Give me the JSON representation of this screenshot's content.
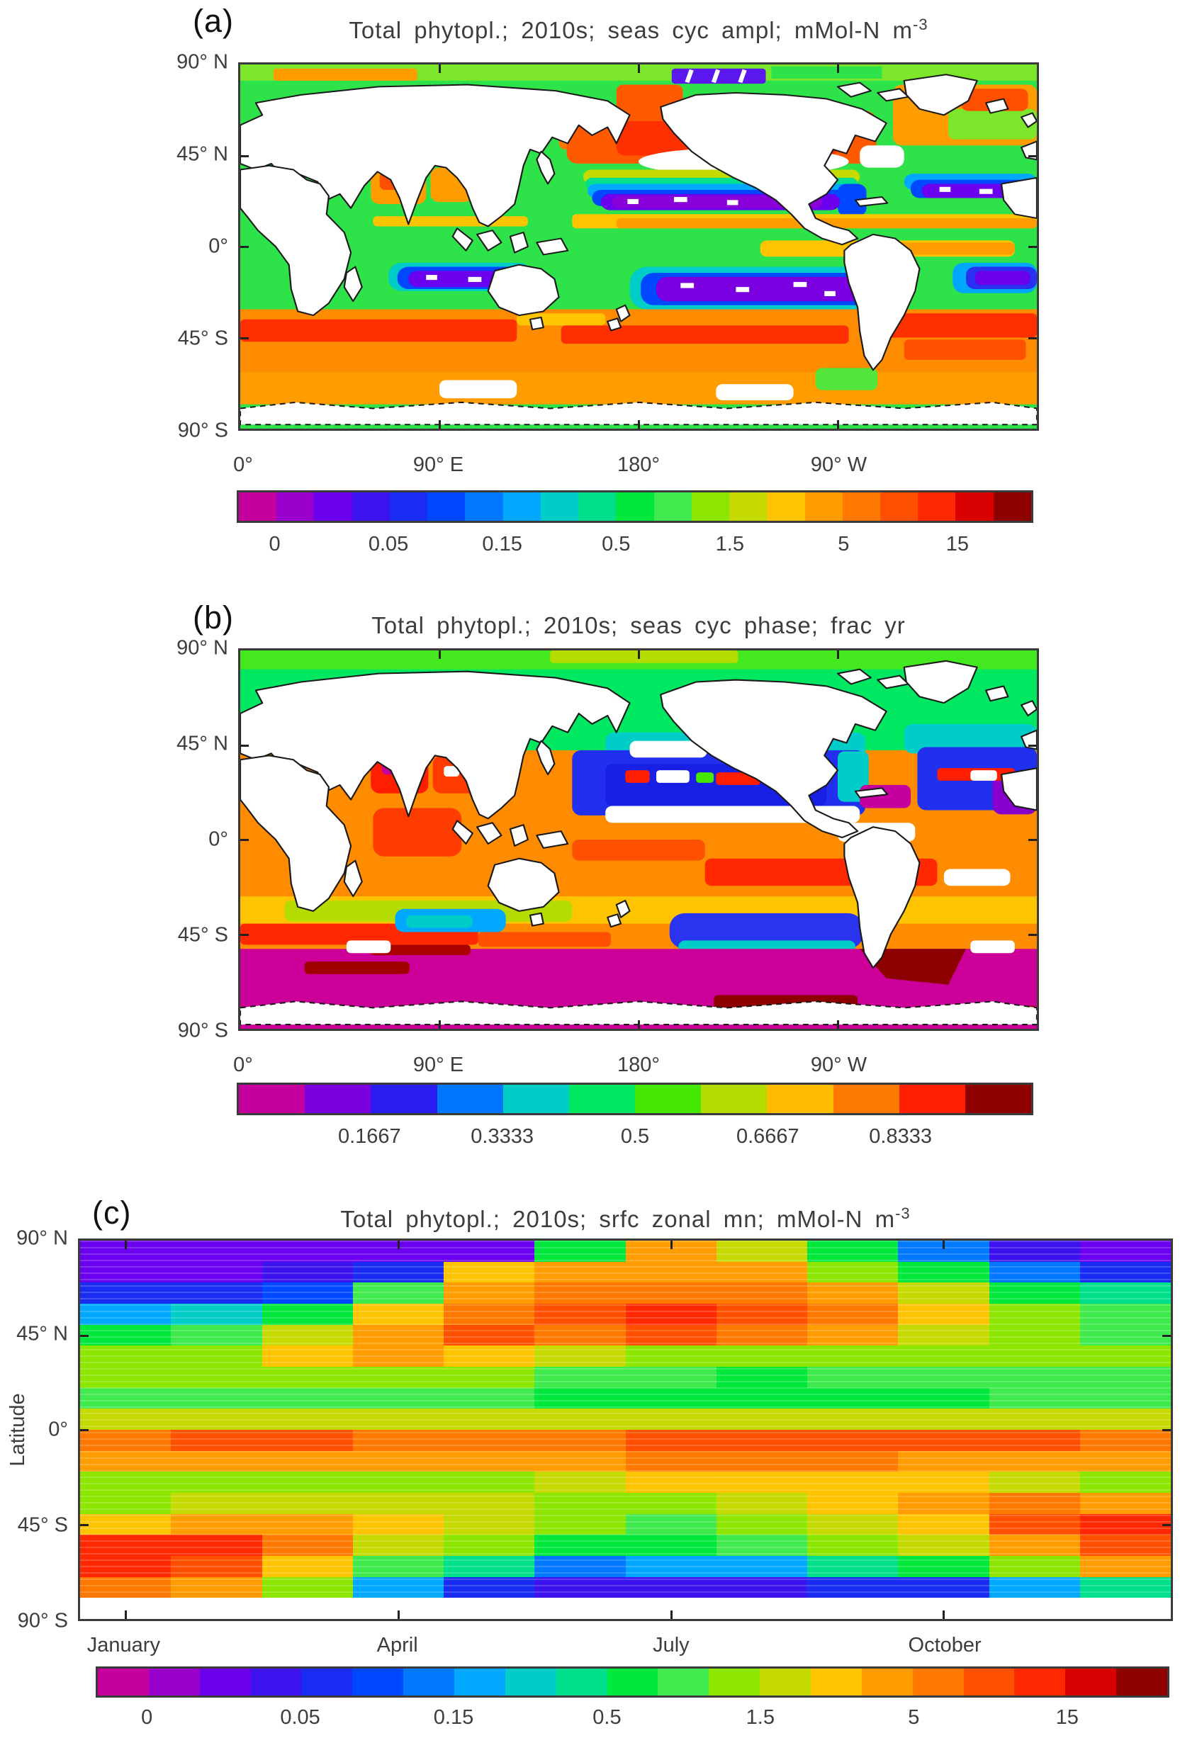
{
  "figure": {
    "panel_tags": [
      "(a)",
      "(b)",
      "(c)"
    ],
    "titles": {
      "a": {
        "text": "Total  phytopl.; 2010s; seas cyc ampl; mMol-N m",
        "sup": "-3"
      },
      "b": {
        "text": "Total  phytopl.; 2010s; seas cyc phase; frac yr",
        "sup": ""
      },
      "c": {
        "text": "Total  phytopl.; 2010s; srfc zonal mn; mMol-N m",
        "sup": "-3"
      }
    },
    "axes": {
      "lat_tick_labels": [
        "90° N",
        "45° N",
        "0°",
        "45° S",
        "90° S"
      ],
      "lon_tick_labels": [
        "0°",
        "90° E",
        "180°",
        "90° W"
      ],
      "c_ylabel": "Latitude",
      "c_month_labels": [
        "January",
        "April",
        "July",
        "October"
      ]
    },
    "colorbars": {
      "amplitude": {
        "palette": [
          "#c6009e",
          "#9a00cc",
          "#6a00ee",
          "#3c12ee",
          "#1b2cf2",
          "#0048ff",
          "#0078ff",
          "#00a8ff",
          "#00ccc8",
          "#00e08c",
          "#00e83c",
          "#40ea4e",
          "#8ce600",
          "#c4da00",
          "#ffc400",
          "#ff9c00",
          "#ff7800",
          "#ff5000",
          "#ff2800",
          "#d80000",
          "#8e0000"
        ],
        "tick_labels": [
          "0",
          "0.05",
          "0.15",
          "0.5",
          "1.5",
          "5",
          "15"
        ],
        "boundary_indices": [
          1,
          4,
          7,
          10,
          13,
          16,
          19
        ]
      },
      "phase": {
        "palette": [
          "#c6009e",
          "#7a00dd",
          "#2a1cee",
          "#0076ff",
          "#00ccc8",
          "#00e862",
          "#44e800",
          "#b4dc00",
          "#ffbc00",
          "#ff7a00",
          "#ff1e00",
          "#8e0000"
        ],
        "tick_labels": [
          "0.1667",
          "0.3333",
          "0.5",
          "0.6667",
          "0.8333"
        ],
        "boundary_indices": [
          2,
          4,
          6,
          8,
          10
        ]
      }
    }
  },
  "chart_data": [
    {
      "panel": "a",
      "type": "heatmap",
      "kind": "global map",
      "title": "Total phytopl.; 2010s; seas cyc ampl; mMol-N m^-3",
      "lon_ticks": [
        "0",
        "90E",
        "180",
        "90W"
      ],
      "lat_ticks": [
        "90N",
        "45N",
        "0",
        "45S",
        "90S"
      ],
      "colorbar": "amplitude",
      "colorbar_scale": "quasi-logarithmic, labels at every 3rd of 21 segment boundaries",
      "regions": [
        {
          "where": "subtropical gyres N+S Pacific, N Atlantic, S Indian (15-35 lat)",
          "value": "<0.05 (purple/blue minima, white speckles)"
        },
        {
          "where": "mid/high-latitude N Pacific and N Atlantic (45-65N)",
          "value": "5-15+ (orange/red maxima)"
        },
        {
          "where": "Southern Ocean 40-65S",
          "value": "5-15 (broad orange/red band with red streaks)"
        },
        {
          "where": "equatorial band",
          "value": "0.5-1.5 (green with yellow/orange stripes)"
        },
        {
          "where": "Arctic",
          "value": "1.5-5 (green with orange patches)"
        }
      ]
    },
    {
      "panel": "b",
      "type": "heatmap",
      "kind": "global map",
      "title": "Total phytopl.; 2010s; seas cyc phase; frac yr",
      "lon_ticks": [
        "0",
        "90E",
        "180",
        "90W"
      ],
      "lat_ticks": [
        "90N",
        "45N",
        "0",
        "45S",
        "90S"
      ],
      "colorbar": "phase",
      "colorbar_scale": "linear 0-1 fraction of year, 12 monthly segments",
      "regions": [
        {
          "where": "south of ~45S",
          "value": "~0-0.1 (magenta) with wrap-around ~1 (dark red) patches"
        },
        {
          "where": "NH subtropical gyres 15-40N",
          "value": "~0.33-0.5 (blue)"
        },
        {
          "where": "Arctic and NH high latitudes",
          "value": "~0.4-0.6 (green)"
        },
        {
          "where": "SH tropics/subtropics 0-40S",
          "value": "~0.67-0.92 (orange/red)"
        },
        {
          "where": "transition band 40-50S",
          "value": "~0.58-0.78 (yellow/orange)"
        },
        {
          "where": "~20N central Pacific and Atlantic",
          "value": "mottled red/green/white (mixed phase)"
        }
      ]
    },
    {
      "panel": "c",
      "type": "heatmap",
      "title": "Total phytopl.; 2010s; srfc zonal mn; mMol-N m^-3",
      "x": "calendar month",
      "y": "latitude",
      "months": [
        "Jan",
        "Feb",
        "Mar",
        "Apr",
        "May",
        "Jun",
        "Jul",
        "Aug",
        "Sep",
        "Oct",
        "Nov",
        "Dec"
      ],
      "lat_bands": [
        "90-80N",
        "80-70N",
        "70-60N",
        "60-52N",
        "52-45N",
        "45-37N",
        "37-30N",
        "30-20N",
        "20-10N",
        "10N-0",
        "0-10S",
        "10-20S",
        "20-30S",
        "30-38S",
        "38-50S",
        "50-60S",
        "60-72S",
        "72-90S no data"
      ],
      "palette": "amplitude",
      "no_data_index": 0,
      "palette_index_grid_by_month": [
        [
          3,
          3,
          5,
          8,
          11,
          13,
          13,
          12,
          14,
          17,
          16,
          13,
          13,
          15,
          19,
          19,
          17,
          0
        ],
        [
          3,
          3,
          5,
          9,
          12,
          13,
          13,
          12,
          14,
          18,
          16,
          13,
          14,
          16,
          19,
          18,
          16,
          0
        ],
        [
          3,
          4,
          6,
          11,
          14,
          15,
          13,
          12,
          14,
          18,
          16,
          13,
          14,
          16,
          17,
          15,
          13,
          0
        ],
        [
          3,
          5,
          12,
          15,
          16,
          16,
          13,
          12,
          14,
          17,
          16,
          13,
          14,
          15,
          14,
          12,
          8,
          0
        ],
        [
          3,
          15,
          16,
          17,
          18,
          15,
          13,
          12,
          14,
          17,
          16,
          13,
          14,
          14,
          13,
          10,
          5,
          0
        ],
        [
          11,
          16,
          17,
          18,
          17,
          14,
          12,
          11,
          14,
          17,
          16,
          14,
          13,
          13,
          11,
          7,
          4,
          0
        ],
        [
          16,
          16,
          17,
          19,
          18,
          13,
          12,
          11,
          14,
          18,
          17,
          15,
          13,
          12,
          11,
          8,
          4,
          0
        ],
        [
          14,
          16,
          17,
          18,
          17,
          13,
          11,
          11,
          14,
          18,
          17,
          15,
          14,
          13,
          12,
          8,
          4,
          0
        ],
        [
          11,
          13,
          16,
          17,
          16,
          13,
          12,
          11,
          14,
          18,
          17,
          15,
          15,
          14,
          13,
          10,
          5,
          0
        ],
        [
          7,
          11,
          14,
          15,
          14,
          13,
          12,
          11,
          14,
          18,
          16,
          15,
          16,
          15,
          14,
          11,
          5,
          0
        ],
        [
          4,
          7,
          11,
          13,
          13,
          13,
          12,
          12,
          14,
          18,
          16,
          14,
          17,
          18,
          16,
          13,
          8,
          0
        ],
        [
          3,
          5,
          10,
          12,
          12,
          13,
          12,
          12,
          14,
          17,
          16,
          13,
          16,
          19,
          18,
          16,
          10,
          0
        ]
      ]
    }
  ]
}
